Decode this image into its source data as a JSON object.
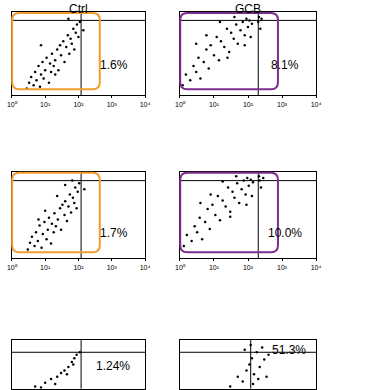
{
  "chart_data": [
    {
      "type": "scatter",
      "title": "Ctrl",
      "log": "x",
      "tick_labels": "x",
      "grid": false,
      "color": "#f39c2b",
      "xlim": [
        1,
        10000
      ],
      "ylim": [
        0,
        100
      ],
      "xticks": [
        {
          "value": 1,
          "label": "10⁰"
        },
        {
          "value": 10,
          "label": "10¹"
        },
        {
          "value": 100,
          "label": "10²"
        },
        {
          "value": 1000,
          "label": "10³"
        },
        {
          "value": 10000,
          "label": "10⁴"
        }
      ],
      "gate": 120,
      "gate_y": 90,
      "annotations": [
        "1.6%"
      ],
      "x": [
        2.8,
        3.3,
        3.8,
        4.5,
        5,
        5.5,
        6.3,
        7,
        7.5,
        8.3,
        9,
        10,
        11,
        13,
        14,
        15,
        16,
        18,
        20,
        23,
        25,
        28,
        30,
        35,
        38,
        43,
        48,
        53,
        58,
        63,
        70,
        75,
        83,
        90,
        100,
        110,
        50,
        20,
        7.5,
        140
      ],
      "y": [
        8,
        15,
        22,
        12,
        28,
        18,
        35,
        10,
        25,
        40,
        20,
        30,
        45,
        15,
        38,
        28,
        50,
        35,
        42,
        55,
        30,
        60,
        48,
        65,
        40,
        58,
        72,
        50,
        68,
        62,
        80,
        55,
        75,
        85,
        70,
        88,
        92,
        25,
        60,
        78
      ]
    },
    {
      "type": "scatter",
      "title": "GCB",
      "log": "x",
      "tick_labels": "x",
      "grid": false,
      "color": "#7d2e8f",
      "xlim": [
        1,
        10000
      ],
      "ylim": [
        0,
        100
      ],
      "xticks": [
        {
          "value": 1,
          "label": "10⁰"
        },
        {
          "value": 10,
          "label": "10¹"
        },
        {
          "value": 100,
          "label": "10²"
        },
        {
          "value": 1000,
          "label": "10³"
        },
        {
          "value": 10000,
          "label": "10⁴"
        }
      ],
      "gate": 200,
      "gate_y": 90,
      "annotations": [
        "8.1%"
      ],
      "x": [
        1.2,
        1.5,
        2,
        2.5,
        3,
        3.5,
        4,
        5,
        6,
        7,
        8,
        10,
        12,
        14,
        16,
        20,
        24,
        28,
        32,
        38,
        45,
        50,
        60,
        70,
        80,
        90,
        100,
        110,
        130,
        210,
        230,
        200,
        250,
        3,
        6,
        15,
        40,
        80,
        120,
        25
      ],
      "y": [
        12,
        25,
        18,
        35,
        28,
        45,
        20,
        40,
        55,
        32,
        60,
        48,
        70,
        42,
        65,
        58,
        80,
        52,
        75,
        68,
        85,
        62,
        78,
        88,
        72,
        92,
        82,
        90,
        86,
        94,
        80,
        88,
        92,
        62,
        72,
        88,
        94,
        60,
        70,
        45
      ]
    },
    {
      "type": "scatter",
      "log": "x",
      "tick_labels": "x",
      "grid": false,
      "color": "#f39c2b",
      "xlim": [
        1,
        10000
      ],
      "ylim": [
        0,
        100
      ],
      "xticks": [
        {
          "value": 1,
          "label": "10⁰"
        },
        {
          "value": 10,
          "label": "10¹"
        },
        {
          "value": 100,
          "label": "10²"
        },
        {
          "value": 1000,
          "label": "10³"
        },
        {
          "value": 10000,
          "label": "10⁴"
        }
      ],
      "gate": 120,
      "gate_y": 90,
      "annotations": [
        "1.7%"
      ],
      "x": [
        3,
        3.5,
        4,
        4.8,
        5.3,
        6,
        6.8,
        7.8,
        8.5,
        9.5,
        11,
        12,
        13,
        15,
        16,
        18,
        19,
        21,
        24,
        28,
        30,
        33,
        38,
        40,
        45,
        50,
        55,
        60,
        68,
        75,
        80,
        88,
        95,
        105,
        23,
        10,
        6.3,
        40,
        65,
        150
      ],
      "y": [
        10,
        18,
        25,
        14,
        30,
        20,
        38,
        12,
        28,
        42,
        22,
        33,
        47,
        17,
        40,
        30,
        52,
        37,
        45,
        58,
        33,
        62,
        50,
        66,
        43,
        60,
        74,
        53,
        70,
        64,
        82,
        58,
        77,
        87,
        72,
        55,
        45,
        85,
        90,
        80
      ]
    },
    {
      "type": "scatter",
      "log": "x",
      "tick_labels": "x",
      "grid": false,
      "color": "#7d2e8f",
      "xlim": [
        1,
        10000
      ],
      "ylim": [
        0,
        100
      ],
      "xticks": [
        {
          "value": 1,
          "label": "10⁰"
        },
        {
          "value": 10,
          "label": "10¹"
        },
        {
          "value": 100,
          "label": "10²"
        },
        {
          "value": 1000,
          "label": "10³"
        },
        {
          "value": 10000,
          "label": "10⁴"
        }
      ],
      "gate": 200,
      "gate_y": 90,
      "annotations": [
        "10.0%"
      ],
      "x": [
        1.3,
        1.6,
        2.2,
        2.7,
        3.2,
        3.8,
        4.5,
        5.5,
        6.5,
        7.5,
        9,
        11,
        13,
        15,
        18,
        22,
        26,
        30,
        35,
        40,
        48,
        55,
        65,
        75,
        85,
        95,
        105,
        120,
        140,
        210,
        240,
        220,
        280,
        4,
        8,
        18,
        45,
        90,
        130,
        30
      ],
      "y": [
        14,
        27,
        20,
        37,
        30,
        47,
        22,
        42,
        57,
        34,
        62,
        50,
        72,
        44,
        67,
        60,
        82,
        54,
        77,
        70,
        87,
        64,
        80,
        90,
        74,
        93,
        84,
        91,
        88,
        95,
        82,
        90,
        93,
        64,
        74,
        89,
        95,
        62,
        72,
        48
      ]
    },
    {
      "type": "scatter",
      "log": "x",
      "tick_labels": false,
      "grid": false,
      "xlim": [
        1,
        10000
      ],
      "ylim": [
        60,
        100
      ],
      "gate": 120,
      "gate_y": 90,
      "annotations": [
        "1.24%"
      ],
      "x": [
        5,
        10,
        15,
        23,
        30,
        38,
        50,
        63,
        75,
        88,
        20,
        45,
        70,
        7.5,
        110
      ],
      "y": [
        62,
        65,
        68,
        70,
        73,
        75,
        78,
        82,
        85,
        88,
        64,
        72,
        80,
        61,
        90
      ]
    },
    {
      "type": "scatter",
      "log": "x",
      "tick_labels": false,
      "grid": false,
      "xlim": [
        1,
        10000
      ],
      "ylim": [
        60,
        100
      ],
      "gate": 120,
      "gate_y": 90,
      "annotations": [
        "51.3%"
      ],
      "x": [
        30,
        50,
        70,
        90,
        110,
        130,
        150,
        180,
        220,
        260,
        300,
        400,
        80,
        140,
        200,
        120,
        350
      ],
      "y": [
        62,
        70,
        66,
        75,
        80,
        85,
        72,
        90,
        78,
        94,
        84,
        88,
        92,
        64,
        68,
        96,
        70
      ]
    }
  ]
}
